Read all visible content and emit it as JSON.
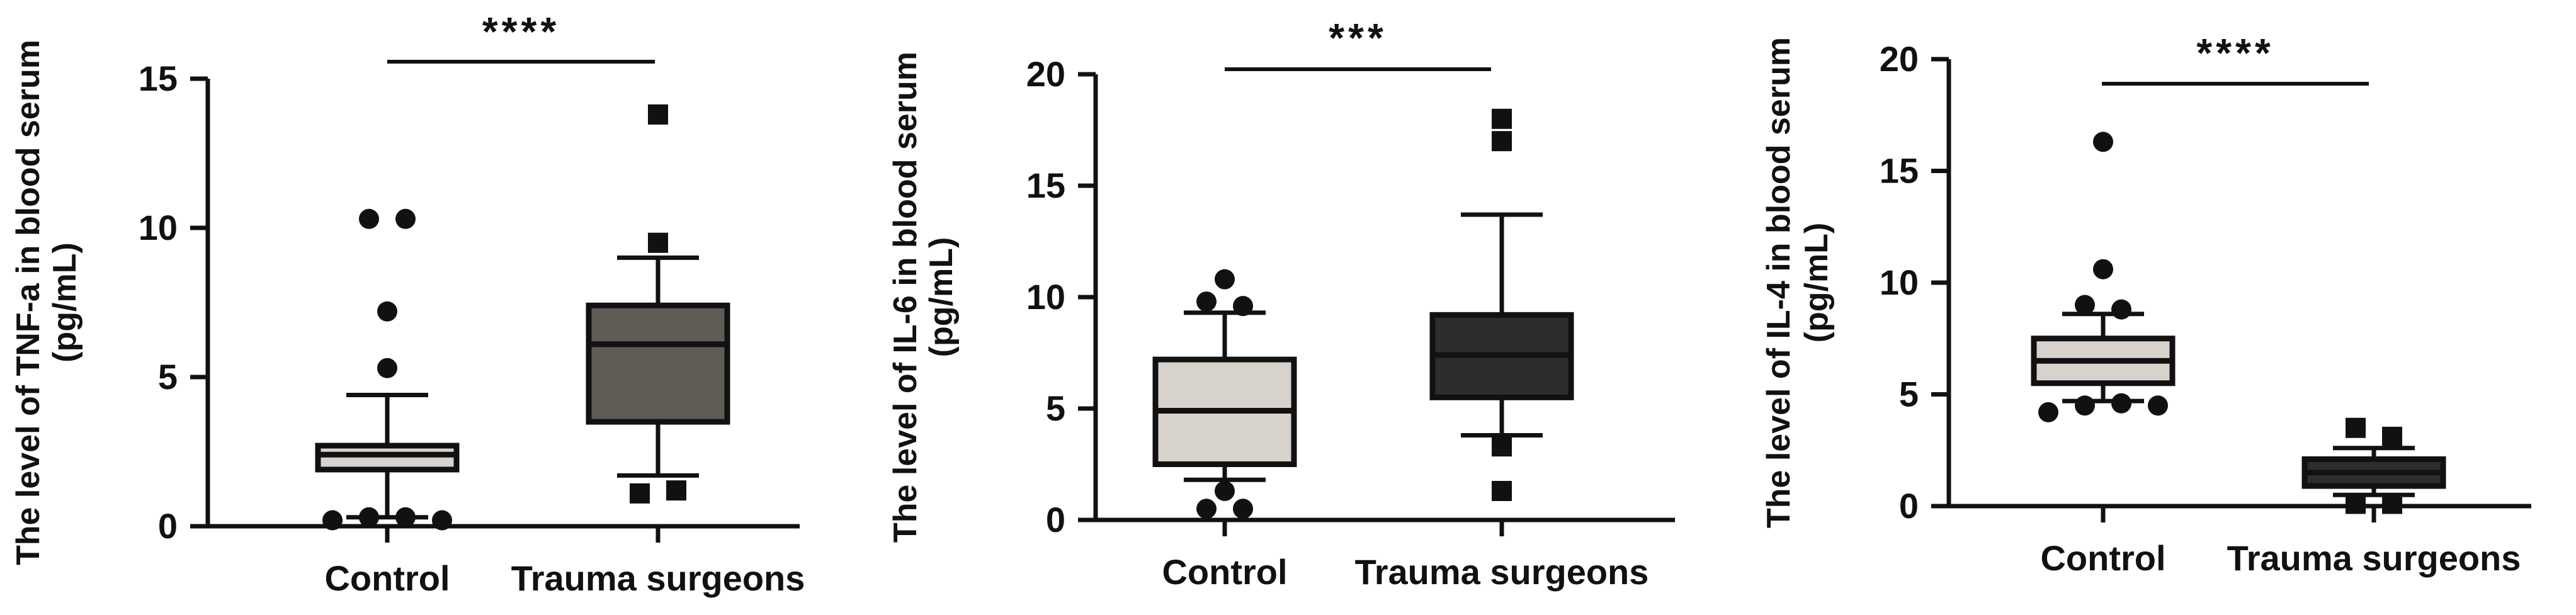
{
  "chart_data": [
    {
      "type": "box",
      "ylabel": "The level of TNF-a in blood serum",
      "yunit": "(pg/mL)",
      "ylim": [
        0,
        15
      ],
      "yticks": [
        "0",
        "5",
        "10",
        "15"
      ],
      "categories": [
        "Control",
        "Trauma surgeons"
      ],
      "significance": "****",
      "groups": [
        {
          "name": "Control",
          "color": "#d7d3cc",
          "marker": "circle",
          "whisker_low": 0.3,
          "q1": 1.9,
          "median": 2.4,
          "q3": 2.7,
          "whisker_high": 4.4,
          "outliers": [
            10.3,
            10.3,
            7.2,
            5.3,
            0.2,
            0.3,
            0.3,
            0.2
          ]
        },
        {
          "name": "Trauma surgeons",
          "color": "#5f5b55",
          "marker": "square",
          "whisker_low": 1.7,
          "q1": 3.5,
          "median": 6.1,
          "q3": 7.4,
          "whisker_high": 9.0,
          "outliers": [
            13.8,
            9.5,
            1.1,
            1.2
          ]
        }
      ]
    },
    {
      "type": "box",
      "ylabel": "The level of IL-6 in blood serum",
      "yunit": "(pg/mL)",
      "ylim": [
        0,
        20
      ],
      "yticks": [
        "0",
        "5",
        "10",
        "15",
        "20"
      ],
      "categories": [
        "Control",
        "Trauma surgeons"
      ],
      "significance": "***",
      "groups": [
        {
          "name": "Control",
          "color": "#d7d3cc",
          "marker": "circle",
          "whisker_low": 1.8,
          "q1": 2.5,
          "median": 4.9,
          "q3": 7.2,
          "whisker_high": 9.3,
          "outliers": [
            10.8,
            9.8,
            9.6,
            1.3,
            0.5,
            0.5
          ]
        },
        {
          "name": "Trauma surgeons",
          "color": "#2f2d2b",
          "marker": "square",
          "whisker_low": 3.8,
          "q1": 5.5,
          "median": 7.4,
          "q3": 9.2,
          "whisker_high": 13.7,
          "outliers": [
            18.0,
            17.0,
            3.3,
            1.3
          ]
        }
      ]
    },
    {
      "type": "box",
      "ylabel": "The level of IL-4 in blood serum",
      "yunit": "(pg/mL)",
      "ylim": [
        0,
        20
      ],
      "yticks": [
        "0",
        "5",
        "10",
        "15",
        "20"
      ],
      "categories": [
        "Control",
        "Trauma surgeons"
      ],
      "significance": "****",
      "groups": [
        {
          "name": "Control",
          "color": "#d7d3cc",
          "marker": "circle",
          "whisker_low": 4.7,
          "q1": 5.5,
          "median": 6.5,
          "q3": 7.5,
          "whisker_high": 8.6,
          "outliers": [
            16.3,
            10.6,
            9.0,
            8.8,
            4.2,
            4.5,
            4.6,
            4.5
          ]
        },
        {
          "name": "Trauma surgeons",
          "color": "#2f2d2b",
          "marker": "square",
          "whisker_low": 0.5,
          "q1": 0.9,
          "median": 1.5,
          "q3": 2.1,
          "whisker_high": 2.6,
          "outliers": [
            3.5,
            3.1,
            0.1,
            0.1
          ]
        }
      ]
    }
  ]
}
